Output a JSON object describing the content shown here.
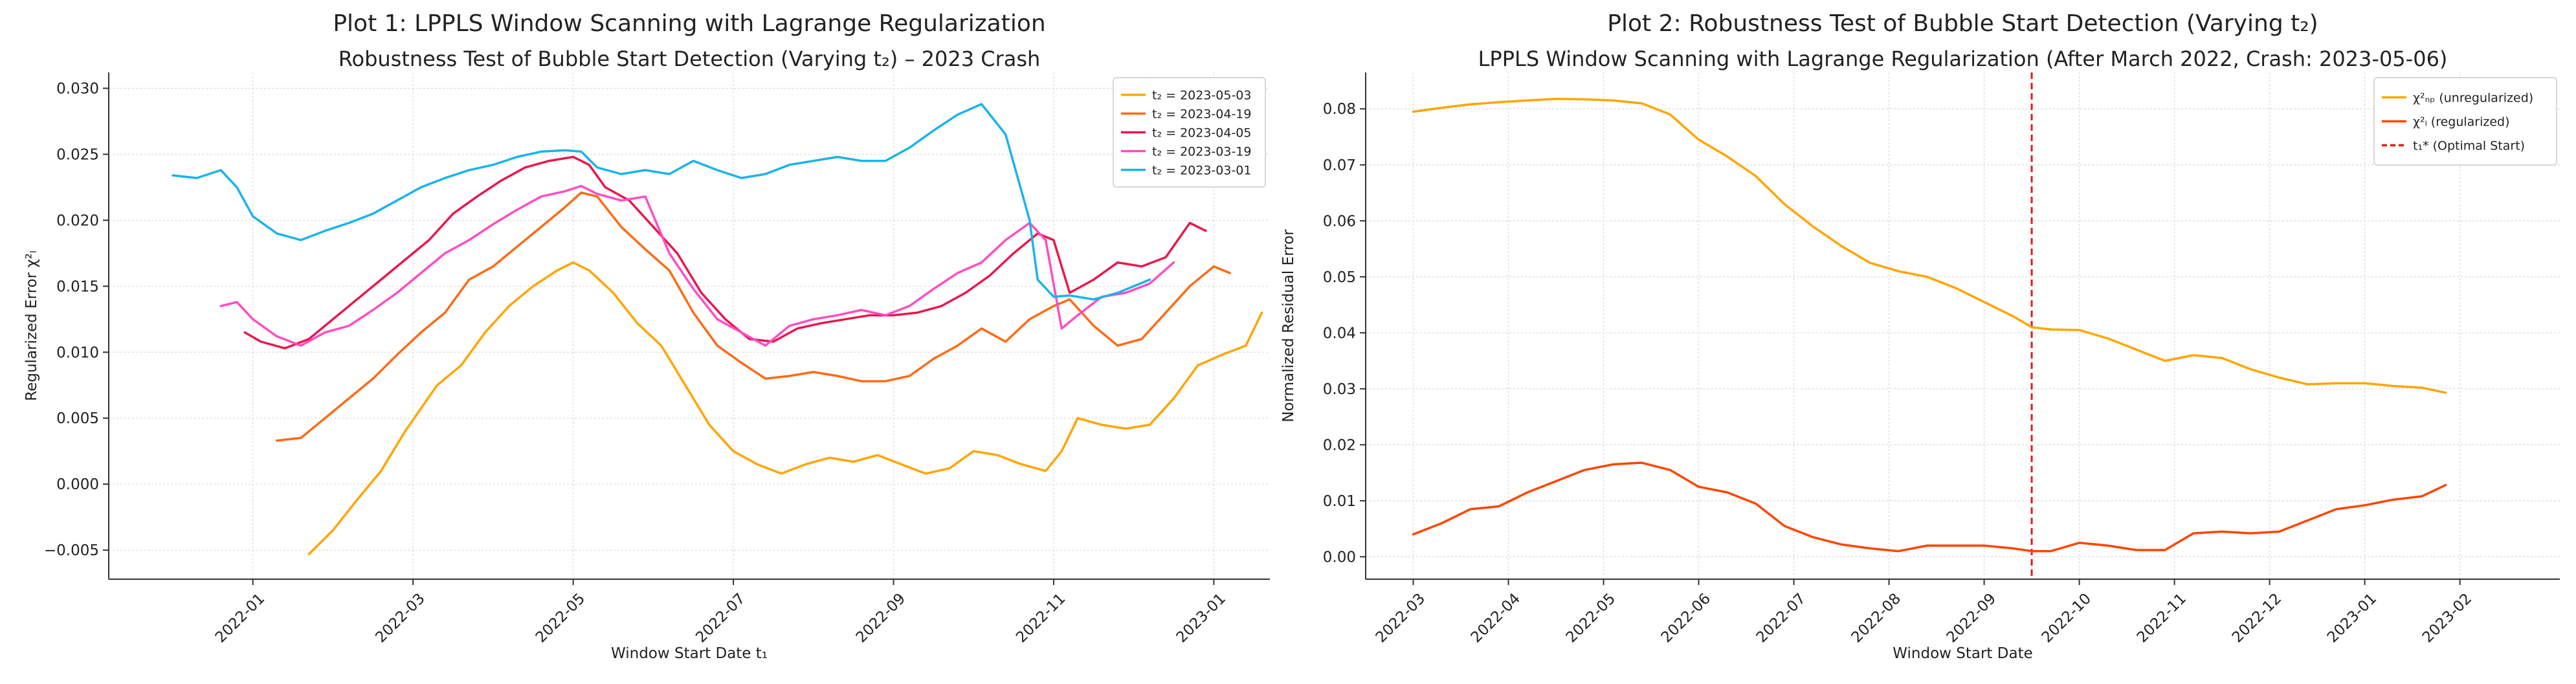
{
  "chart_data": [
    {
      "type": "line",
      "suptitle": "Plot 1: LPPLS Window Scanning with Lagrange Regularization",
      "title": "Robustness Test of Bubble Start Detection (Varying t₂) – 2023 Crash",
      "xlabel": "Window Start Date t₁",
      "ylabel": "Regularized Error χ²ₗ",
      "xlim": [
        -0.8,
        13.7
      ],
      "ylim": [
        -0.0072,
        0.0312
      ],
      "xticks": [
        {
          "v": 1,
          "label": "2022-01"
        },
        {
          "v": 3,
          "label": "2022-03"
        },
        {
          "v": 5,
          "label": "2022-05"
        },
        {
          "v": 7,
          "label": "2022-07"
        },
        {
          "v": 9,
          "label": "2022-09"
        },
        {
          "v": 11,
          "label": "2022-11"
        },
        {
          "v": 13,
          "label": "2023-01"
        }
      ],
      "yticks": [
        {
          "v": -0.005,
          "label": "−0.005"
        },
        {
          "v": 0.0,
          "label": "0.000"
        },
        {
          "v": 0.005,
          "label": "0.005"
        },
        {
          "v": 0.01,
          "label": "0.010"
        },
        {
          "v": 0.015,
          "label": "0.015"
        },
        {
          "v": 0.02,
          "label": "0.020"
        },
        {
          "v": 0.025,
          "label": "0.025"
        },
        {
          "v": 0.03,
          "label": "0.030"
        }
      ],
      "legend_position": "top-right",
      "series": [
        {
          "name": "t₂ = 2023-05-03",
          "color": "#ffa500",
          "x": [
            1.7,
            2.0,
            2.3,
            2.6,
            2.9,
            3.3,
            3.6,
            3.9,
            4.2,
            4.5,
            4.8,
            5.0,
            5.2,
            5.5,
            5.8,
            6.1,
            6.4,
            6.7,
            7.0,
            7.3,
            7.6,
            7.9,
            8.2,
            8.5,
            8.8,
            9.1,
            9.4,
            9.7,
            10.0,
            10.3,
            10.6,
            10.9,
            11.1,
            11.3,
            11.6,
            11.9,
            12.2,
            12.5,
            12.8,
            13.1,
            13.4,
            13.6
          ],
          "y": [
            -0.0053,
            -0.0035,
            -0.0012,
            0.001,
            0.004,
            0.0075,
            0.009,
            0.0115,
            0.0135,
            0.015,
            0.0162,
            0.0168,
            0.0162,
            0.0145,
            0.0122,
            0.0105,
            0.0075,
            0.0045,
            0.0025,
            0.0015,
            0.0008,
            0.0015,
            0.002,
            0.0017,
            0.0022,
            0.0015,
            0.0008,
            0.0012,
            0.0025,
            0.0022,
            0.0015,
            0.001,
            0.0025,
            0.005,
            0.0045,
            0.0042,
            0.0045,
            0.0065,
            0.009,
            0.0098,
            0.0105,
            0.013
          ]
        },
        {
          "name": "t₂ = 2023-04-19",
          "color": "#ff6a13",
          "x": [
            1.3,
            1.6,
            1.9,
            2.2,
            2.5,
            2.8,
            3.1,
            3.4,
            3.7,
            4.0,
            4.3,
            4.6,
            4.9,
            5.1,
            5.3,
            5.6,
            5.9,
            6.2,
            6.5,
            6.8,
            7.1,
            7.4,
            7.7,
            8.0,
            8.3,
            8.6,
            8.9,
            9.2,
            9.5,
            9.8,
            10.1,
            10.4,
            10.7,
            11.0,
            11.2,
            11.5,
            11.8,
            12.1,
            12.4,
            12.7,
            13.0,
            13.2
          ],
          "y": [
            0.0033,
            0.0035,
            0.005,
            0.0065,
            0.008,
            0.0098,
            0.0115,
            0.013,
            0.0155,
            0.0165,
            0.018,
            0.0195,
            0.021,
            0.0221,
            0.0218,
            0.0195,
            0.0178,
            0.0162,
            0.013,
            0.0105,
            0.0092,
            0.008,
            0.0082,
            0.0085,
            0.0082,
            0.0078,
            0.0078,
            0.0082,
            0.0095,
            0.0105,
            0.0118,
            0.0108,
            0.0125,
            0.0135,
            0.014,
            0.012,
            0.0105,
            0.011,
            0.013,
            0.015,
            0.0165,
            0.016
          ]
        },
        {
          "name": "t₂ = 2023-04-05",
          "color": "#e8174e",
          "x": [
            0.9,
            1.1,
            1.4,
            1.7,
            2.0,
            2.3,
            2.6,
            2.9,
            3.2,
            3.5,
            3.8,
            4.1,
            4.4,
            4.7,
            5.0,
            5.2,
            5.4,
            5.7,
            6.0,
            6.3,
            6.6,
            6.9,
            7.2,
            7.5,
            7.8,
            8.1,
            8.4,
            8.7,
            9.0,
            9.3,
            9.6,
            9.9,
            10.2,
            10.5,
            10.8,
            11.0,
            11.2,
            11.5,
            11.8,
            12.1,
            12.4,
            12.7,
            12.9
          ],
          "y": [
            0.0115,
            0.0108,
            0.0103,
            0.011,
            0.0125,
            0.014,
            0.0155,
            0.017,
            0.0185,
            0.0205,
            0.0218,
            0.023,
            0.024,
            0.0245,
            0.0248,
            0.0242,
            0.0225,
            0.0215,
            0.0195,
            0.0175,
            0.0145,
            0.0125,
            0.011,
            0.0108,
            0.0118,
            0.0122,
            0.0125,
            0.0128,
            0.0128,
            0.013,
            0.0135,
            0.0145,
            0.0158,
            0.0175,
            0.019,
            0.0185,
            0.0145,
            0.0155,
            0.0168,
            0.0165,
            0.0172,
            0.0198,
            0.0192
          ]
        },
        {
          "name": "t₂ = 2023-03-19",
          "color": "#ff4cc4",
          "x": [
            0.6,
            0.8,
            1.0,
            1.3,
            1.6,
            1.9,
            2.2,
            2.5,
            2.8,
            3.1,
            3.4,
            3.7,
            4.0,
            4.3,
            4.6,
            4.9,
            5.1,
            5.3,
            5.6,
            5.9,
            6.2,
            6.5,
            6.8,
            7.1,
            7.4,
            7.7,
            8.0,
            8.3,
            8.6,
            8.9,
            9.2,
            9.5,
            9.8,
            10.1,
            10.4,
            10.7,
            10.9,
            11.1,
            11.3,
            11.6,
            11.9,
            12.2,
            12.5
          ],
          "y": [
            0.0135,
            0.0138,
            0.0125,
            0.0112,
            0.0105,
            0.0115,
            0.012,
            0.0132,
            0.0145,
            0.016,
            0.0175,
            0.0185,
            0.0197,
            0.0208,
            0.0218,
            0.0222,
            0.0226,
            0.022,
            0.0215,
            0.0218,
            0.0175,
            0.0148,
            0.0125,
            0.0115,
            0.0105,
            0.012,
            0.0125,
            0.0128,
            0.0132,
            0.0128,
            0.0135,
            0.0148,
            0.016,
            0.0168,
            0.0185,
            0.0198,
            0.0185,
            0.0118,
            0.0128,
            0.0142,
            0.0145,
            0.0152,
            0.0168
          ]
        },
        {
          "name": "t₂ = 2023-03-01",
          "color": "#1ab3ec",
          "x": [
            0.0,
            0.3,
            0.6,
            0.8,
            1.0,
            1.3,
            1.6,
            1.9,
            2.2,
            2.5,
            2.8,
            3.1,
            3.4,
            3.7,
            4.0,
            4.3,
            4.6,
            4.9,
            5.1,
            5.3,
            5.6,
            5.9,
            6.2,
            6.5,
            6.8,
            7.1,
            7.4,
            7.7,
            8.0,
            8.3,
            8.6,
            8.9,
            9.2,
            9.5,
            9.8,
            10.1,
            10.4,
            10.7,
            10.8,
            11.0,
            11.2,
            11.5,
            11.8,
            12.0,
            12.2
          ],
          "y": [
            0.0234,
            0.0232,
            0.0238,
            0.0225,
            0.0203,
            0.019,
            0.0185,
            0.0192,
            0.0198,
            0.0205,
            0.0215,
            0.0225,
            0.0232,
            0.0238,
            0.0242,
            0.0248,
            0.0252,
            0.0253,
            0.0252,
            0.024,
            0.0235,
            0.0238,
            0.0235,
            0.0245,
            0.0238,
            0.0232,
            0.0235,
            0.0242,
            0.0245,
            0.0248,
            0.0245,
            0.0245,
            0.0255,
            0.0268,
            0.028,
            0.0288,
            0.0265,
            0.02,
            0.0155,
            0.0142,
            0.0143,
            0.014,
            0.0145,
            0.015,
            0.0155
          ]
        }
      ]
    },
    {
      "type": "line",
      "suptitle": "Plot 2: Robustness Test of Bubble Start Detection (Varying t₂)",
      "title": "LPPLS Window Scanning with Lagrange Regularization (After March 2022, Crash: 2023-05-06)",
      "xlabel": "Window Start Date",
      "ylabel": "Normalized Residual Error",
      "xlim": [
        -0.5,
        12.05
      ],
      "ylim": [
        -0.004,
        0.0865
      ],
      "xticks": [
        {
          "v": 0,
          "label": "2022-03"
        },
        {
          "v": 1,
          "label": "2022-04"
        },
        {
          "v": 2,
          "label": "2022-05"
        },
        {
          "v": 3,
          "label": "2022-06"
        },
        {
          "v": 4,
          "label": "2022-07"
        },
        {
          "v": 5,
          "label": "2022-08"
        },
        {
          "v": 6,
          "label": "2022-09"
        },
        {
          "v": 7,
          "label": "2022-10"
        },
        {
          "v": 8,
          "label": "2022-11"
        },
        {
          "v": 9,
          "label": "2022-12"
        },
        {
          "v": 10,
          "label": "2023-01"
        },
        {
          "v": 11,
          "label": "2023-02"
        }
      ],
      "yticks": [
        {
          "v": 0.0,
          "label": "0.00"
        },
        {
          "v": 0.01,
          "label": "0.01"
        },
        {
          "v": 0.02,
          "label": "0.02"
        },
        {
          "v": 0.03,
          "label": "0.03"
        },
        {
          "v": 0.04,
          "label": "0.04"
        },
        {
          "v": 0.05,
          "label": "0.05"
        },
        {
          "v": 0.06,
          "label": "0.06"
        },
        {
          "v": 0.07,
          "label": "0.07"
        },
        {
          "v": 0.08,
          "label": "0.08"
        }
      ],
      "legend_position": "top-right",
      "vline": {
        "x": 6.5,
        "color": "#e41a1c",
        "name": "t₁* (Optimal Start)"
      },
      "series": [
        {
          "name": "χ²ₙₚ (unregularized)",
          "color": "#ffa500",
          "x": [
            0.0,
            0.3,
            0.6,
            0.9,
            1.2,
            1.5,
            1.8,
            2.1,
            2.4,
            2.7,
            3.0,
            3.3,
            3.6,
            3.9,
            4.2,
            4.5,
            4.8,
            5.1,
            5.4,
            5.7,
            6.0,
            6.3,
            6.5,
            6.7,
            7.0,
            7.3,
            7.6,
            7.9,
            8.2,
            8.5,
            8.8,
            9.1,
            9.4,
            9.7,
            10.0,
            10.3,
            10.6,
            10.85
          ],
          "y": [
            0.0795,
            0.0802,
            0.0808,
            0.0812,
            0.0815,
            0.0818,
            0.0817,
            0.0815,
            0.081,
            0.079,
            0.0745,
            0.0715,
            0.068,
            0.063,
            0.059,
            0.0555,
            0.0525,
            0.051,
            0.05,
            0.048,
            0.0455,
            0.043,
            0.041,
            0.0406,
            0.0405,
            0.039,
            0.037,
            0.035,
            0.036,
            0.0355,
            0.0335,
            0.032,
            0.0308,
            0.031,
            0.031,
            0.0305,
            0.0302,
            0.0293
          ]
        },
        {
          "name": "χ²ₗ (regularized)",
          "color": "#ff4500",
          "x": [
            0.0,
            0.3,
            0.6,
            0.9,
            1.2,
            1.5,
            1.8,
            2.1,
            2.4,
            2.7,
            3.0,
            3.3,
            3.6,
            3.9,
            4.2,
            4.5,
            4.8,
            5.1,
            5.4,
            5.7,
            6.0,
            6.3,
            6.5,
            6.7,
            7.0,
            7.3,
            7.6,
            7.9,
            8.2,
            8.5,
            8.8,
            9.1,
            9.4,
            9.7,
            10.0,
            10.3,
            10.6,
            10.85
          ],
          "y": [
            0.004,
            0.006,
            0.0085,
            0.009,
            0.0115,
            0.0135,
            0.0155,
            0.0165,
            0.0168,
            0.0155,
            0.0125,
            0.0115,
            0.0095,
            0.0055,
            0.0035,
            0.0022,
            0.0015,
            0.001,
            0.002,
            0.002,
            0.002,
            0.0015,
            0.001,
            0.001,
            0.0025,
            0.002,
            0.0012,
            0.0012,
            0.0042,
            0.0045,
            0.0042,
            0.0045,
            0.0065,
            0.0085,
            0.0092,
            0.0102,
            0.0108,
            0.0128
          ]
        }
      ]
    }
  ]
}
